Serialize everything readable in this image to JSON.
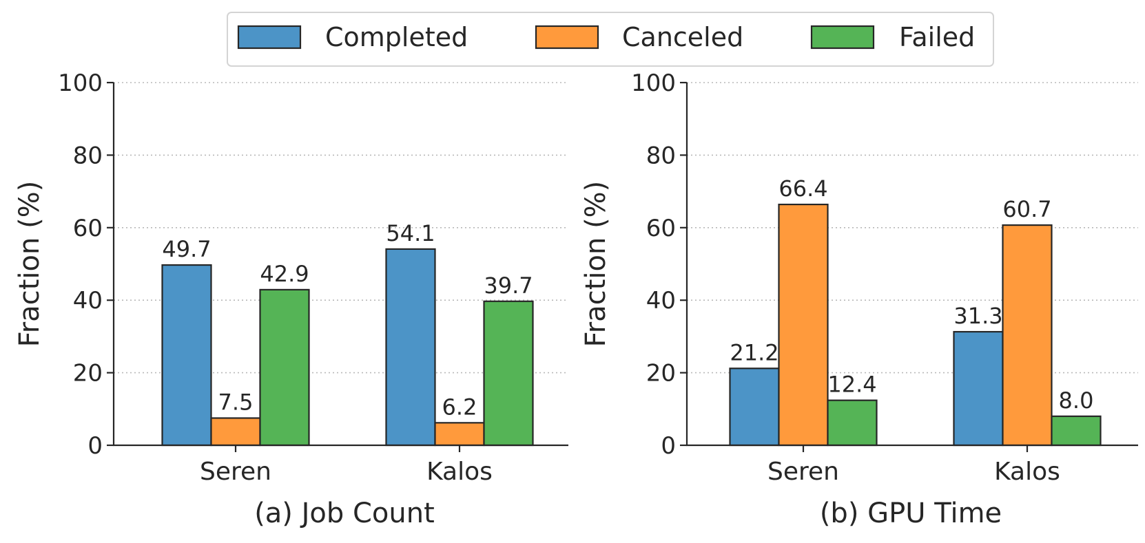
{
  "chart_data": [
    {
      "type": "bar",
      "title": "(a) Job Count",
      "ylabel": "Fraction (%)",
      "xlabel": "",
      "categories": [
        "Seren",
        "Kalos"
      ],
      "ylim": [
        0,
        100
      ],
      "yticks": [
        "0",
        "20",
        "40",
        "60",
        "80",
        "100"
      ],
      "grid": "horizontal dotted",
      "series": [
        {
          "name": "Completed",
          "values": [
            49.7,
            54.1
          ],
          "labels": [
            "49.7",
            "54.1"
          ]
        },
        {
          "name": "Canceled",
          "values": [
            7.5,
            6.2
          ],
          "labels": [
            "7.5",
            "6.2"
          ]
        },
        {
          "name": "Failed",
          "values": [
            42.9,
            39.7
          ],
          "labels": [
            "42.9",
            "39.7"
          ]
        }
      ]
    },
    {
      "type": "bar",
      "title": "(b) GPU Time",
      "ylabel": "Fraction (%)",
      "xlabel": "",
      "categories": [
        "Seren",
        "Kalos"
      ],
      "ylim": [
        0,
        100
      ],
      "yticks": [
        "0",
        "20",
        "40",
        "60",
        "80",
        "100"
      ],
      "grid": "horizontal dotted",
      "series": [
        {
          "name": "Completed",
          "values": [
            21.2,
            31.3
          ],
          "labels": [
            "21.2",
            "31.3"
          ]
        },
        {
          "name": "Canceled",
          "values": [
            66.4,
            60.7
          ],
          "labels": [
            "66.4",
            "60.7"
          ]
        },
        {
          "name": "Failed",
          "values": [
            12.4,
            8.0
          ],
          "labels": [
            "12.4",
            "8.0"
          ]
        }
      ]
    }
  ],
  "legend": {
    "placement": "top-center",
    "items": [
      {
        "label": "Completed",
        "color": "#4c94c7"
      },
      {
        "label": "Canceled",
        "color": "#ff9a3c"
      },
      {
        "label": "Failed",
        "color": "#55b456"
      }
    ]
  }
}
